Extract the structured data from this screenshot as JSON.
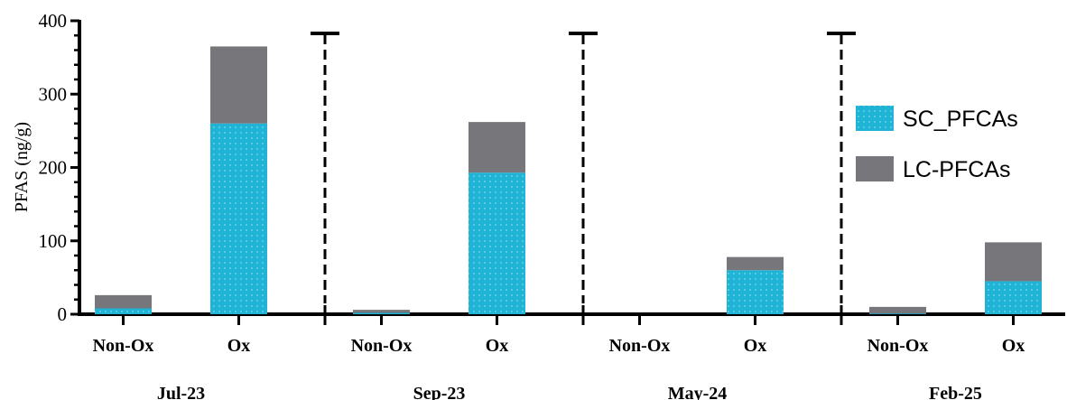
{
  "chart_data": {
    "type": "bar",
    "stacked": true,
    "ylabel": "PFAS (ng/g)",
    "ylim": [
      0,
      400
    ],
    "yticks": [
      0,
      100,
      200,
      300,
      400
    ],
    "legend_position": "right",
    "groups": [
      "Jul-23",
      "Sep-23",
      "May-24",
      "Feb-25"
    ],
    "categories": [
      "Non-Ox",
      "Ox",
      "Non-Ox",
      "Ox",
      "Non-Ox",
      "Ox",
      "Non-Ox",
      "Ox"
    ],
    "series": [
      {
        "name": "SC_PFCAs",
        "color": "#1fb3d6",
        "values": [
          8,
          260,
          2,
          193,
          0,
          60,
          1,
          45
        ]
      },
      {
        "name": "LC-PFCAs",
        "color": "#77777b",
        "values": [
          18,
          105,
          4,
          69,
          0,
          18,
          9,
          53
        ]
      }
    ],
    "separator": "dashed-vertical"
  }
}
